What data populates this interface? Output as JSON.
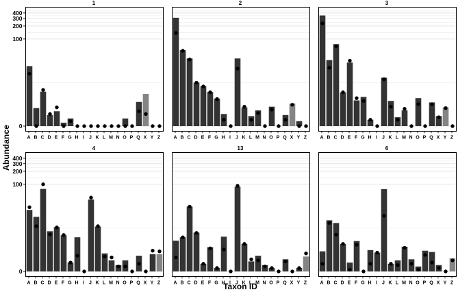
{
  "chart_data": {
    "type": "bar",
    "xlabel": "Taxon ID",
    "ylabel": "Abundance",
    "categories": [
      "A",
      "B",
      "C",
      "D",
      "E",
      "F",
      "G",
      "H",
      "I",
      "J",
      "K",
      "L",
      "M",
      "N",
      "O",
      "P",
      "Q",
      "X",
      "Y",
      "Z"
    ],
    "y_ticks": [
      0,
      100,
      200,
      300,
      400
    ],
    "y_minor_gridlines": [
      9,
      141,
      245,
      346,
      448
    ],
    "y_scale": "log1p",
    "ylim": [
      0,
      535
    ],
    "grid": true,
    "legend": "none",
    "facet_layout": {
      "rows": 2,
      "cols": 3
    },
    "colors": {
      "bar": "#333333",
      "highlight_bar": "#848484",
      "point": "#000000",
      "grid_major": "#e4e4e4",
      "grid_minor": "#f2f2f2",
      "panel_border": "#000000"
    },
    "panels": [
      {
        "title": "1",
        "highlight": "X",
        "bars": [
          23,
          1.6,
          5.2,
          0.8,
          1.2,
          0.2,
          0.5,
          0,
          0,
          0,
          0,
          0,
          0,
          0,
          0.5,
          0,
          2.6,
          4.5,
          0,
          0
        ],
        "points": [
          15,
          0,
          5.8,
          0.9,
          1.7,
          0,
          0.3,
          0,
          0,
          0,
          0,
          0,
          0,
          0,
          0,
          0,
          1.2,
          0.9,
          0,
          0
        ]
      },
      {
        "title": "2",
        "highlight": "X",
        "bars": [
          310,
          55,
          35,
          9,
          7.3,
          5.1,
          3.3,
          0.9,
          0,
          35,
          1.7,
          0.7,
          1.3,
          0,
          1.8,
          0,
          0.8,
          2.3,
          0.3,
          0
        ],
        "points": [
          138,
          53,
          33,
          9,
          7.2,
          5,
          3.2,
          0.4,
          0,
          20,
          1.8,
          0.4,
          1,
          0,
          1.4,
          0,
          0.4,
          2.1,
          0,
          0
        ]
      },
      {
        "title": "3",
        "highlight": "Y",
        "bars": [
          350,
          32,
          76,
          5,
          28,
          2.9,
          3.7,
          0.4,
          0,
          12,
          2.8,
          0.6,
          1.3,
          0,
          3.4,
          0,
          2.5,
          0.7,
          1.7,
          0
        ],
        "points": [
          230,
          21,
          68,
          5,
          31,
          3.4,
          2.8,
          0.4,
          0,
          11,
          1.8,
          0.4,
          1.5,
          0,
          2.2,
          0,
          2.2,
          0.6,
          1.6,
          0
        ]
      },
      {
        "title": "4",
        "highlight": "Z",
        "bars": [
          25,
          17,
          78,
          7.4,
          9.4,
          5.8,
          0.6,
          5.1,
          0,
          44,
          9.8,
          1.6,
          0.8,
          0.4,
          0.8,
          0,
          1.3,
          0,
          1.5,
          1.5
        ],
        "points": [
          29,
          10,
          100,
          6.1,
          9.3,
          5.9,
          0.6,
          1.3,
          0,
          49,
          10,
          1.2,
          1.1,
          0.3,
          0.3,
          0,
          0.5,
          0,
          2,
          1.9
        ]
      },
      {
        "title": "13",
        "highlight": "Z",
        "bars": [
          4.1,
          5.1,
          30,
          6.8,
          0.5,
          2.6,
          0.2,
          5.3,
          0,
          88,
          3.3,
          0.7,
          1.3,
          0.4,
          0.2,
          0,
          0.9,
          0,
          0.2,
          1.2
        ],
        "points": [
          1.1,
          5.1,
          30,
          6.7,
          0.5,
          2.4,
          0.2,
          2.2,
          0,
          92,
          3.3,
          0.9,
          0.8,
          0.3,
          0.2,
          0,
          0.7,
          0,
          0.2,
          1.6
        ]
      },
      {
        "title": "6",
        "highlight": "Z",
        "bars": [
          1.9,
          14,
          12,
          3.3,
          0.6,
          4,
          0,
          2.1,
          1.7,
          77,
          0.5,
          0.8,
          2.7,
          0.9,
          0.3,
          2,
          1.8,
          0.4,
          0,
          1
        ],
        "points": [
          0.5,
          12,
          6,
          3.3,
          0.1,
          3.1,
          0,
          0.5,
          1.7,
          18,
          0.5,
          0.4,
          2.5,
          0.5,
          0.1,
          1.4,
          0.6,
          0.2,
          0,
          0.8
        ]
      }
    ]
  }
}
